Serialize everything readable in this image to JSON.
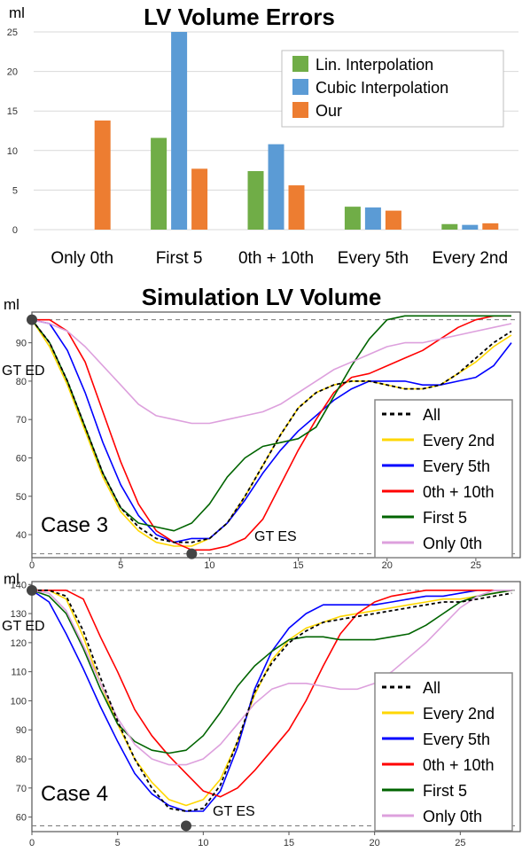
{
  "chart_data": [
    {
      "type": "bar",
      "title": "LV Volume Errors",
      "ylabel": "ml",
      "ylim": [
        0,
        25
      ],
      "yticks": [
        "0",
        "5",
        "10",
        "15",
        "20",
        "25"
      ],
      "categories": [
        "Only 0th",
        "First 5",
        "0th + 10th",
        "Every 5th",
        "Every 2nd"
      ],
      "series": [
        {
          "name": "Lin. Interpolation",
          "color": "#70AD47",
          "values": [
            null,
            11.6,
            7.4,
            2.9,
            0.7
          ]
        },
        {
          "name": "Cubic Interpolation",
          "color": "#5B9BD5",
          "values": [
            null,
            25.0,
            10.8,
            2.8,
            0.6
          ]
        },
        {
          "name": "Our",
          "color": "#ED7D31",
          "values": [
            13.8,
            7.7,
            5.6,
            2.4,
            0.8
          ]
        }
      ],
      "legend_position": "top-right",
      "grid": true
    },
    {
      "type": "line",
      "title": "Simulation LV Volume",
      "ylabel": "ml",
      "case_label": "Case 3",
      "ed_label": "GT ED",
      "es_label": "GT ES",
      "xlim": [
        0,
        27.5
      ],
      "ylim": [
        34,
        98
      ],
      "xticks": [
        "0",
        "5",
        "10",
        "15",
        "20",
        "25"
      ],
      "yticks": [
        "40",
        "50",
        "60",
        "70",
        "80",
        "90"
      ],
      "ytick_values": [
        40,
        50,
        60,
        70,
        80,
        90
      ],
      "gt_ed": {
        "x": 0,
        "y": 96
      },
      "gt_es": {
        "x": 9,
        "y": 35
      },
      "legend_position": "bottom-right",
      "series": [
        {
          "name": "All",
          "color": "#000000",
          "dash": true,
          "x": [
            0,
            1,
            2,
            3,
            4,
            5,
            6,
            7,
            8,
            9,
            10,
            11,
            12,
            13,
            14,
            15,
            16,
            17,
            18,
            19,
            20,
            21,
            22,
            23,
            24,
            25,
            26,
            27
          ],
          "y": [
            96,
            90,
            80,
            68,
            56,
            47,
            42,
            39,
            38,
            38,
            39,
            43,
            50,
            58,
            66,
            73,
            77,
            79,
            80,
            80,
            79,
            78,
            78,
            79,
            82,
            86,
            90,
            93
          ]
        },
        {
          "name": "Every 2nd",
          "color": "#FFD700",
          "x": [
            0,
            1,
            2,
            3,
            4,
            5,
            6,
            7,
            8,
            9,
            10,
            11,
            12,
            13,
            14,
            15,
            16,
            17,
            18,
            19,
            20,
            21,
            22,
            23,
            24,
            25,
            26,
            27
          ],
          "y": [
            96,
            89,
            79,
            67,
            55,
            46,
            41,
            38,
            37,
            37,
            39,
            43,
            50,
            58,
            66,
            73,
            77,
            79,
            80,
            80,
            79,
            78,
            78,
            79,
            82,
            85,
            89,
            92
          ]
        },
        {
          "name": "Every 5th",
          "color": "#0000FF",
          "x": [
            0,
            1,
            2,
            3,
            4,
            5,
            6,
            7,
            8,
            9,
            10,
            11,
            12,
            13,
            14,
            15,
            16,
            17,
            18,
            19,
            20,
            21,
            22,
            23,
            24,
            25,
            26,
            27
          ],
          "y": [
            96,
            95,
            88,
            77,
            64,
            53,
            45,
            40,
            38,
            39,
            39,
            43,
            49,
            56,
            62,
            67,
            71,
            75,
            78,
            80,
            80,
            80,
            79,
            79,
            80,
            81,
            84,
            90
          ]
        },
        {
          "name": "0th + 10th",
          "color": "#FF0000",
          "x": [
            0,
            1,
            2,
            3,
            4,
            5,
            6,
            7,
            8,
            9,
            10,
            11,
            12,
            13,
            14,
            15,
            16,
            17,
            18,
            19,
            20,
            21,
            22,
            23,
            24,
            25,
            26,
            27
          ],
          "y": [
            96,
            96,
            93,
            85,
            72,
            59,
            48,
            41,
            38,
            36,
            36,
            37,
            39,
            44,
            53,
            62,
            70,
            77,
            81,
            82,
            84,
            86,
            88,
            91,
            94,
            96,
            97,
            97
          ]
        },
        {
          "name": "First 5",
          "color": "#006400",
          "x": [
            0,
            1,
            2,
            3,
            4,
            5,
            6,
            7,
            8,
            9,
            10,
            11,
            12,
            13,
            14,
            15,
            16,
            17,
            18,
            19,
            20,
            21,
            22,
            23,
            24,
            25,
            26,
            27
          ],
          "y": [
            96,
            90,
            80,
            68,
            56,
            47,
            43,
            42,
            41,
            43,
            48,
            55,
            60,
            63,
            64,
            65,
            68,
            76,
            84,
            91,
            96,
            97,
            97,
            97,
            97,
            97,
            97,
            97
          ]
        },
        {
          "name": "Only 0th",
          "color": "#DDA0DD",
          "x": [
            0,
            1,
            2,
            3,
            4,
            5,
            6,
            7,
            8,
            9,
            10,
            11,
            12,
            13,
            14,
            15,
            16,
            17,
            18,
            19,
            20,
            21,
            22,
            23,
            24,
            25,
            26,
            27
          ],
          "y": [
            96,
            95,
            93,
            89,
            84,
            79,
            74,
            71,
            70,
            69,
            69,
            70,
            71,
            72,
            74,
            77,
            80,
            83,
            85,
            87,
            89,
            90,
            90,
            91,
            92,
            93,
            94,
            95
          ]
        }
      ]
    },
    {
      "type": "line",
      "ylabel": "ml",
      "case_label": "Case 4",
      "ed_label": "GT ED",
      "es_label": "GT ES",
      "xlim": [
        0,
        28.5
      ],
      "ylim": [
        55,
        141
      ],
      "xticks": [
        "0",
        "5",
        "10",
        "15",
        "20",
        "25"
      ],
      "yticks": [
        "60",
        "70",
        "80",
        "90",
        "100",
        "110",
        "120",
        "130",
        "140"
      ],
      "ytick_values": [
        60,
        70,
        80,
        90,
        100,
        110,
        120,
        130,
        140
      ],
      "gt_ed": {
        "x": 0,
        "y": 138
      },
      "gt_es": {
        "x": 9,
        "y": 57
      },
      "legend_position": "bottom-right",
      "series": [
        {
          "name": "All",
          "color": "#000000",
          "dash": true,
          "x": [
            0,
            1,
            2,
            3,
            4,
            5,
            6,
            7,
            8,
            9,
            10,
            11,
            12,
            13,
            14,
            15,
            16,
            17,
            18,
            19,
            20,
            21,
            22,
            23,
            24,
            25,
            26,
            27,
            28
          ],
          "y": [
            138,
            138,
            136,
            124,
            108,
            93,
            80,
            70,
            63,
            62,
            63,
            71,
            86,
            103,
            113,
            120,
            124,
            127,
            128,
            129,
            130,
            131,
            132,
            133,
            134,
            134,
            135,
            136,
            137
          ]
        },
        {
          "name": "Every 2nd",
          "color": "#FFD700",
          "x": [
            0,
            1,
            2,
            3,
            4,
            5,
            6,
            7,
            8,
            9,
            10,
            11,
            12,
            13,
            14,
            15,
            16,
            17,
            18,
            19,
            20,
            21,
            22,
            23,
            24,
            25,
            26,
            27,
            28
          ],
          "y": [
            138,
            138,
            135,
            122,
            106,
            92,
            80,
            72,
            66,
            64,
            66,
            73,
            86,
            102,
            114,
            121,
            125,
            127,
            129,
            130,
            131,
            132,
            133,
            134,
            135,
            135,
            136,
            137,
            138
          ]
        },
        {
          "name": "Every 5th",
          "color": "#0000FF",
          "x": [
            0,
            1,
            2,
            3,
            4,
            5,
            6,
            7,
            8,
            9,
            10,
            11,
            12,
            13,
            14,
            15,
            16,
            17,
            18,
            19,
            20,
            21,
            22,
            23,
            24,
            25,
            26,
            27,
            28
          ],
          "y": [
            138,
            134,
            123,
            111,
            98,
            86,
            75,
            68,
            64,
            62,
            62,
            69,
            84,
            104,
            117,
            125,
            130,
            133,
            133,
            133,
            133,
            134,
            135,
            136,
            136,
            137,
            138,
            138,
            138
          ]
        },
        {
          "name": "0th + 10th",
          "color": "#FF0000",
          "x": [
            0,
            1,
            2,
            3,
            4,
            5,
            6,
            7,
            8,
            9,
            10,
            11,
            12,
            13,
            14,
            15,
            16,
            17,
            18,
            19,
            20,
            21,
            22,
            23,
            24,
            25,
            26,
            27,
            28
          ],
          "y": [
            138,
            138,
            138,
            135,
            122,
            110,
            97,
            88,
            81,
            75,
            69,
            67,
            70,
            76,
            83,
            90,
            100,
            112,
            123,
            130,
            134,
            136,
            137,
            138,
            138,
            138,
            138,
            138,
            138
          ]
        },
        {
          "name": "First 5",
          "color": "#006400",
          "x": [
            0,
            1,
            2,
            3,
            4,
            5,
            6,
            7,
            8,
            9,
            10,
            11,
            12,
            13,
            14,
            15,
            16,
            17,
            18,
            19,
            20,
            21,
            22,
            23,
            24,
            25,
            26,
            27,
            28
          ],
          "y": [
            138,
            136,
            130,
            118,
            104,
            92,
            86,
            83,
            82,
            83,
            88,
            96,
            105,
            112,
            117,
            121,
            122,
            122,
            121,
            121,
            121,
            122,
            123,
            126,
            130,
            134,
            136,
            137,
            138
          ]
        },
        {
          "name": "Only 0th",
          "color": "#DDA0DD",
          "x": [
            0,
            1,
            2,
            3,
            4,
            5,
            6,
            7,
            8,
            9,
            10,
            11,
            12,
            13,
            14,
            15,
            16,
            17,
            18,
            19,
            20,
            21,
            22,
            23,
            24,
            25,
            26,
            27,
            28
          ],
          "y": [
            138,
            137,
            131,
            119,
            106,
            94,
            85,
            80,
            78,
            78,
            80,
            85,
            92,
            99,
            104,
            106,
            106,
            105,
            104,
            104,
            106,
            110,
            115,
            120,
            126,
            132,
            136,
            138,
            138
          ]
        }
      ]
    }
  ]
}
